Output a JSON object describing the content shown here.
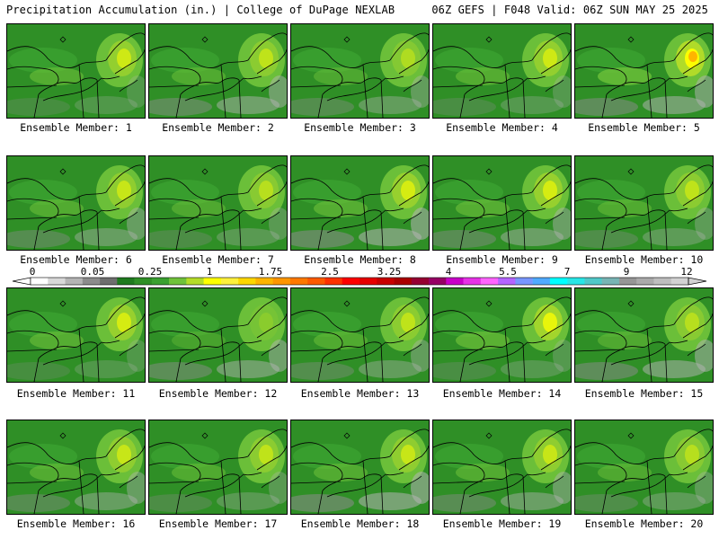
{
  "header": {
    "left_title": "Precipitation Accumulation (in.) | College of DuPage NEXLAB",
    "right_title": "06Z GEFS | F048 Valid: 06Z SUN MAY 25 2025"
  },
  "panels": [
    {
      "caption": "Ensemble Member: 1",
      "intensity": 0.55
    },
    {
      "caption": "Ensemble Member: 2",
      "intensity": 0.45
    },
    {
      "caption": "Ensemble Member: 3",
      "intensity": 0.35
    },
    {
      "caption": "Ensemble Member: 4",
      "intensity": 0.55
    },
    {
      "caption": "Ensemble Member: 5",
      "intensity": 0.95
    },
    {
      "caption": "Ensemble Member: 6",
      "intensity": 0.5
    },
    {
      "caption": "Ensemble Member: 7",
      "intensity": 0.4
    },
    {
      "caption": "Ensemble Member: 8",
      "intensity": 0.6
    },
    {
      "caption": "Ensemble Member: 9",
      "intensity": 0.6
    },
    {
      "caption": "Ensemble Member: 10",
      "intensity": 0.45
    },
    {
      "caption": "Ensemble Member: 11",
      "intensity": 0.6
    },
    {
      "caption": "Ensemble Member: 12",
      "intensity": 0.15
    },
    {
      "caption": "Ensemble Member: 13",
      "intensity": 0.45
    },
    {
      "caption": "Ensemble Member: 14",
      "intensity": 0.75
    },
    {
      "caption": "Ensemble Member: 15",
      "intensity": 0.4
    },
    {
      "caption": "Ensemble Member: 16",
      "intensity": 0.5
    },
    {
      "caption": "Ensemble Member: 17",
      "intensity": 0.45
    },
    {
      "caption": "Ensemble Member: 18",
      "intensity": 0.5
    },
    {
      "caption": "Ensemble Member: 19",
      "intensity": 0.5
    },
    {
      "caption": "Ensemble Member: 20",
      "intensity": 0.4
    }
  ],
  "colorbar": {
    "labels": [
      "0",
      "0.05",
      "0.25",
      "1",
      "1.75",
      "2.5",
      "3.25",
      "4",
      "5.5",
      "7",
      "9",
      "12"
    ],
    "colors": [
      "#ffffff",
      "#d8d8d8",
      "#b4b4b4",
      "#8c8c8c",
      "#6e6e6e",
      "#1e7a1e",
      "#2f8f26",
      "#3aa030",
      "#6fc23a",
      "#b4dc28",
      "#ffff00",
      "#fff03c",
      "#ffd700",
      "#ffb400",
      "#ff9600",
      "#ff7800",
      "#ff5a00",
      "#ff3200",
      "#ff0000",
      "#e60000",
      "#c80000",
      "#aa0000",
      "#960032",
      "#960064",
      "#c800c8",
      "#e632e6",
      "#ff64ff",
      "#b464ff",
      "#7896ff",
      "#50aaff",
      "#00ffff",
      "#28e6e6",
      "#50c8c8",
      "#78b4b4",
      "#969696",
      "#aaaaaa",
      "#bebebe",
      "#d2d2d2"
    ]
  }
}
